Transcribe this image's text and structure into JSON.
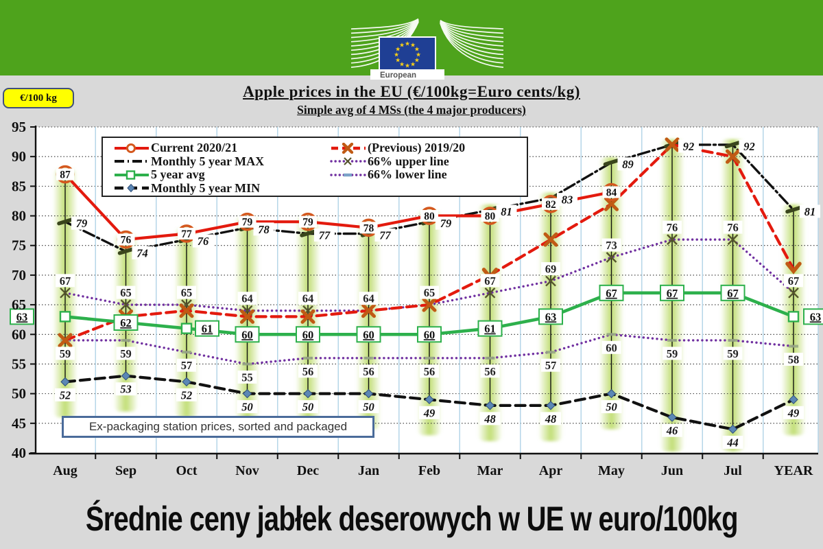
{
  "header": {
    "logo_text": "European",
    "band_color": "#4ea31c",
    "flag_color": "#1f3f94",
    "star_color": "#fcd116"
  },
  "unit_badge": "€/100 kg",
  "titles": {
    "title": "Apple prices in the EU (€/100kg=Euro cents/kg)",
    "subtitle": "Simple avg of 4 MSs (the 4 major producers)"
  },
  "legend": {
    "column1": [
      {
        "label": "Current 2020/21"
      },
      {
        "label": "Monthly 5 year MAX"
      },
      {
        "label": "5 year avg"
      },
      {
        "label": "Monthly 5 year MIN"
      }
    ],
    "column2": [
      {
        "label": "(Previous) 2019/20"
      },
      {
        "label": "66% upper line"
      },
      {
        "label": "66% lower line"
      }
    ]
  },
  "note": "Ex-packaging station prices, sorted and packaged",
  "caption": "Średnie ceny jabłek deserowych w UE w euro/100kg",
  "chart_data": {
    "type": "line",
    "title": "Apple prices in the EU (€/100kg=Euro cents/kg)",
    "subtitle": "Simple avg of 4 MSs (the 4 major producers)",
    "ylabel": "€/100 kg",
    "categories": [
      "Aug",
      "Sep",
      "Oct",
      "Nov",
      "Dec",
      "Jan",
      "Feb",
      "Mar",
      "Apr",
      "May",
      "Jun",
      "Jul",
      "YEAR"
    ],
    "ylim": [
      40,
      95
    ],
    "ytick_step": 5,
    "grid": {
      "horizontal": "dotted-black",
      "vertical": "solid-lightblue",
      "vgrid_color": "#b5d6e8"
    },
    "column_glow_color": "#bedc6e",
    "series": [
      {
        "name": "Monthly 5 year MIN",
        "color": "#111111",
        "line": "dashed",
        "stroke_width": 4.2,
        "marker": "diamond",
        "marker_color": "#5b87b5",
        "label_style": "italic",
        "values": [
          52,
          53,
          52,
          50,
          50,
          50,
          49,
          48,
          48,
          50,
          46,
          44,
          49
        ]
      },
      {
        "name": "66% lower line",
        "color": "#7030a0",
        "line": "dotted",
        "stroke_width": 3.4,
        "marker": "dash-small",
        "marker_color": "#97a884",
        "label_style": "box",
        "values": [
          59,
          59,
          57,
          55,
          56,
          56,
          56,
          56,
          57,
          60,
          59,
          59,
          58
        ]
      },
      {
        "name": "66% upper line",
        "color": "#7030a0",
        "line": "dotted",
        "stroke_width": 3.4,
        "marker": "x-thin",
        "marker_color": "#55552c",
        "label_style": "box-above",
        "values": [
          67,
          65,
          65,
          64,
          64,
          64,
          65,
          67,
          69,
          73,
          76,
          76,
          67
        ]
      },
      {
        "name": "Monthly 5 year MAX",
        "color": "#111111",
        "line": "dashdot",
        "stroke_width": 3.4,
        "marker": "dash-bold",
        "marker_color": "#3a451c",
        "label_style": "italic-right",
        "values": [
          79,
          74,
          76,
          78,
          77,
          77,
          79,
          81,
          83,
          89,
          92,
          92,
          81
        ]
      },
      {
        "name": "(Previous) 2019/20",
        "color": "#e31a0e",
        "line": "dashed",
        "stroke_width": 4.2,
        "marker": "x-bold",
        "marker_color": "#c05a14",
        "label_style": "none",
        "arrow_indices": [
          7,
          12
        ],
        "values": [
          59,
          63,
          64,
          63,
          63,
          64,
          65,
          70,
          76,
          82,
          92,
          90,
          71
        ]
      },
      {
        "name": "5 year avg",
        "color": "#2db04c",
        "line": "solid",
        "stroke_width": 4.6,
        "marker": "square",
        "marker_color": "#2db04c",
        "label_style": "greenbox",
        "label_dx": {
          "0": -63,
          "2": 30,
          "12": 32
        },
        "values": [
          63,
          62,
          61,
          60,
          60,
          60,
          60,
          61,
          63,
          67,
          67,
          67,
          63
        ]
      },
      {
        "name": "Current 2020/21",
        "color": "#e31a0e",
        "line": "solid",
        "stroke_width": 4.2,
        "marker": "circle",
        "marker_color": "#d4581e",
        "label_style": "on-point",
        "values": [
          87,
          76,
          77,
          79,
          79,
          78,
          80,
          80,
          82,
          84,
          null,
          null,
          null
        ]
      }
    ]
  }
}
